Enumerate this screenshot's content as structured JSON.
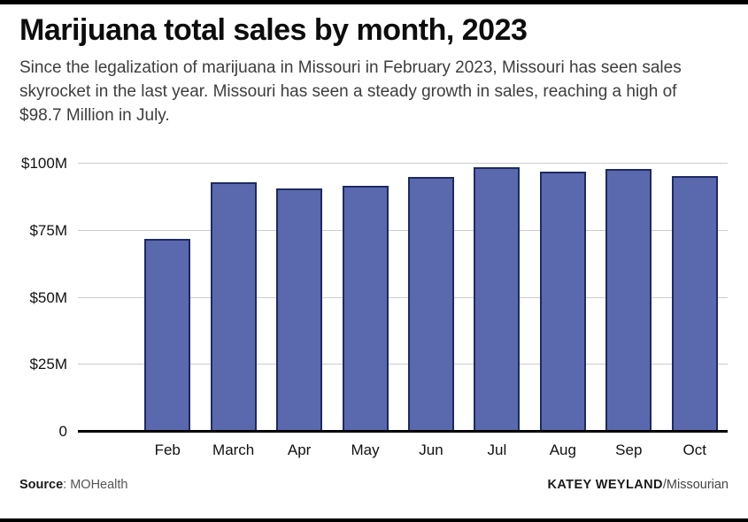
{
  "header": {
    "title": "Marijuana total sales by month, 2023",
    "subtitle": "Since the legalization of marijuana in Missouri in February 2023, Missouri has seen sales skyrocket in the last year. Missouri has seen a steady growth in sales, reaching a high of $98.7 Million in July."
  },
  "chart_data": {
    "type": "bar",
    "categories": [
      "Feb",
      "March",
      "Apr",
      "May",
      "Jun",
      "Jul",
      "Aug",
      "Sep",
      "Oct"
    ],
    "values": [
      72,
      93,
      91,
      92,
      95,
      98.7,
      97,
      98,
      95.5
    ],
    "title": "Marijuana total sales by month, 2023",
    "xlabel": "",
    "ylabel": "",
    "ylim": [
      0,
      100
    ],
    "yticks": [
      {
        "value": 0,
        "label": "0"
      },
      {
        "value": 25,
        "label": "$25M"
      },
      {
        "value": 50,
        "label": "$50M"
      },
      {
        "value": 75,
        "label": "$75M"
      },
      {
        "value": 100,
        "label": "$100M"
      }
    ],
    "grid": true,
    "gridline_color": "#cccccc",
    "bar_color": "#5a69ad",
    "bar_border_color": "#1e2a63",
    "axis_color": "#000000",
    "legend": "none"
  },
  "footer": {
    "source_label": "Source",
    "source_value": ": MOHealth",
    "credit_name": "KATEY WEYLAND",
    "credit_org": "/Missourian"
  }
}
